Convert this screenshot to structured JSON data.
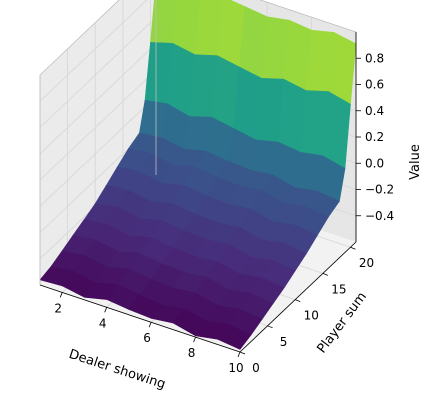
{
  "chart_data": {
    "type": "surface",
    "xlabel": "Dealer showing",
    "ylabel": "Player sum",
    "zlabel": "Value",
    "xlim": [
      1,
      10
    ],
    "ylim": [
      0,
      21
    ],
    "zlim": [
      -0.6,
      1.0
    ],
    "x_ticks": [
      "2",
      "4",
      "6",
      "8",
      "10"
    ],
    "y_ticks": [
      "0",
      "5",
      "10",
      "15",
      "20"
    ],
    "z_ticks": [
      "−0.4",
      "−0.2",
      "0.0",
      "0.2",
      "0.4",
      "0.6",
      "0.8"
    ],
    "colormap": "viridis",
    "dealer": [
      1,
      2,
      3,
      4,
      5,
      6,
      7,
      8,
      9,
      10
    ],
    "player_sum": [
      0,
      2,
      4,
      6,
      8,
      10,
      12,
      14,
      16,
      18,
      19,
      20,
      21
    ],
    "values": [
      [
        -0.56,
        -0.55,
        -0.58,
        -0.54,
        -0.56,
        -0.57,
        -0.55,
        -0.59,
        -0.56,
        -0.58
      ],
      [
        -0.54,
        -0.52,
        -0.55,
        -0.51,
        -0.53,
        -0.55,
        -0.52,
        -0.56,
        -0.53,
        -0.55
      ],
      [
        -0.5,
        -0.48,
        -0.51,
        -0.47,
        -0.49,
        -0.5,
        -0.48,
        -0.52,
        -0.49,
        -0.51
      ],
      [
        -0.46,
        -0.44,
        -0.47,
        -0.43,
        -0.45,
        -0.46,
        -0.44,
        -0.48,
        -0.45,
        -0.47
      ],
      [
        -0.42,
        -0.4,
        -0.43,
        -0.39,
        -0.41,
        -0.42,
        -0.4,
        -0.44,
        -0.41,
        -0.43
      ],
      [
        -0.38,
        -0.35,
        -0.38,
        -0.34,
        -0.36,
        -0.37,
        -0.35,
        -0.39,
        -0.36,
        -0.38
      ],
      [
        -0.32,
        -0.3,
        -0.33,
        -0.29,
        -0.31,
        -0.32,
        -0.3,
        -0.34,
        -0.31,
        -0.33
      ],
      [
        -0.26,
        -0.24,
        -0.27,
        -0.23,
        -0.25,
        -0.26,
        -0.24,
        -0.28,
        -0.25,
        -0.27
      ],
      [
        -0.2,
        -0.18,
        -0.21,
        -0.17,
        -0.19,
        -0.2,
        -0.18,
        -0.22,
        -0.19,
        -0.21
      ],
      [
        -0.16,
        -0.14,
        -0.17,
        -0.13,
        -0.15,
        -0.16,
        -0.14,
        -0.18,
        -0.15,
        -0.17
      ],
      [
        0.05,
        0.08,
        0.04,
        0.09,
        0.06,
        0.03,
        0.07,
        0.05,
        0.08,
        0.04
      ],
      [
        0.45,
        0.5,
        0.47,
        0.52,
        0.49,
        0.46,
        0.51,
        0.48,
        0.53,
        0.49
      ],
      [
        0.88,
        0.92,
        0.9,
        0.93,
        0.91,
        0.89,
        0.92,
        0.9,
        0.94,
        0.91
      ]
    ]
  }
}
